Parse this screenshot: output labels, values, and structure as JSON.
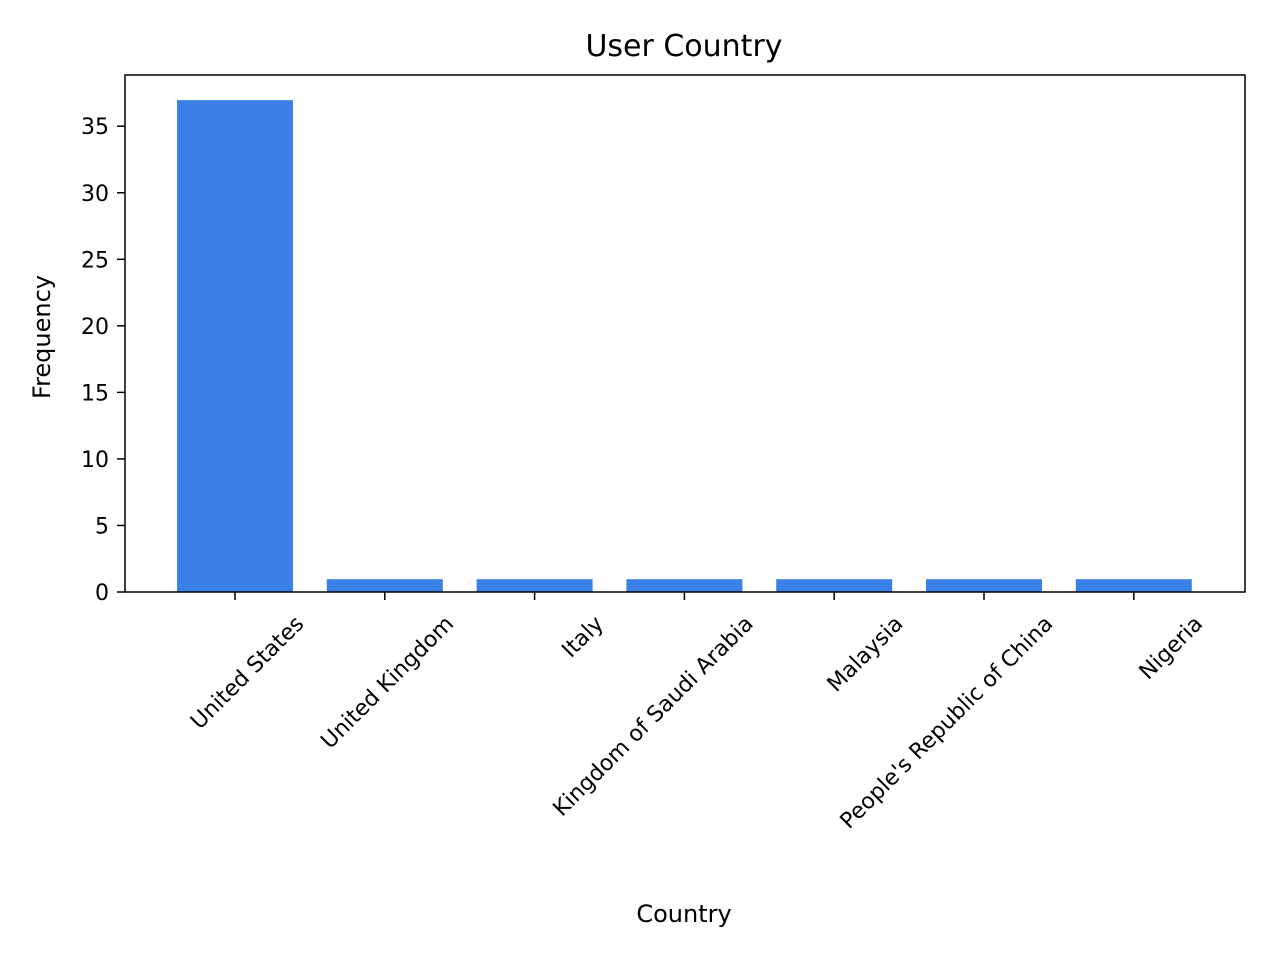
{
  "chart_data": {
    "type": "bar",
    "title": "User Country",
    "xlabel": "Country",
    "ylabel": "Frequency",
    "categories": [
      "United States",
      "United Kingdom",
      "Italy",
      "Kingdom of Saudi Arabia",
      "Malaysia",
      "People's Republic of China",
      "Nigeria"
    ],
    "values": [
      37,
      1,
      1,
      1,
      1,
      1,
      1
    ],
    "ylim": [
      0,
      38.85
    ],
    "yticks": [
      0,
      5,
      10,
      15,
      20,
      25,
      30,
      35
    ],
    "bar_color": "#3a80e6",
    "grid": false,
    "legend": "none"
  }
}
